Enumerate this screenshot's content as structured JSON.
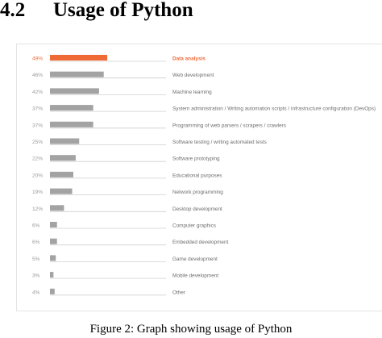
{
  "heading": {
    "number": "4.2",
    "title": "Usage of Python"
  },
  "caption": "Figure 2: Graph showing usage of Python",
  "colors": {
    "highlight": "#f06a35",
    "bar": "#a3a3a3",
    "rule": "#cfcfcf",
    "pct_text": "#9a9a9a",
    "label_text": "#6d6d6d"
  },
  "chart_data": {
    "type": "bar",
    "orientation": "horizontal",
    "grid": false,
    "legend": "none",
    "xlim": [
      0,
      100
    ],
    "highlight_index": 0,
    "categories": [
      "Data analysis",
      "Web development",
      "Machine learning",
      "System administration / Writing automation scripts / Infrastructure configuration (DevOps)",
      "Programming of web parsers / scrapers / crawlers",
      "Software testing / writing automated tests",
      "Software prototyping",
      "Educational purposes",
      "Network programming",
      "Desktop development",
      "Computer graphics",
      "Embedded development",
      "Game development",
      "Mobile development",
      "Other"
    ],
    "values": [
      49,
      46,
      42,
      37,
      37,
      25,
      22,
      20,
      19,
      12,
      6,
      6,
      5,
      3,
      4
    ],
    "value_labels": [
      "49%",
      "46%",
      "42%",
      "37%",
      "37%",
      "25%",
      "22%",
      "20%",
      "19%",
      "12%",
      "6%",
      "6%",
      "5%",
      "3%",
      "4%"
    ]
  }
}
